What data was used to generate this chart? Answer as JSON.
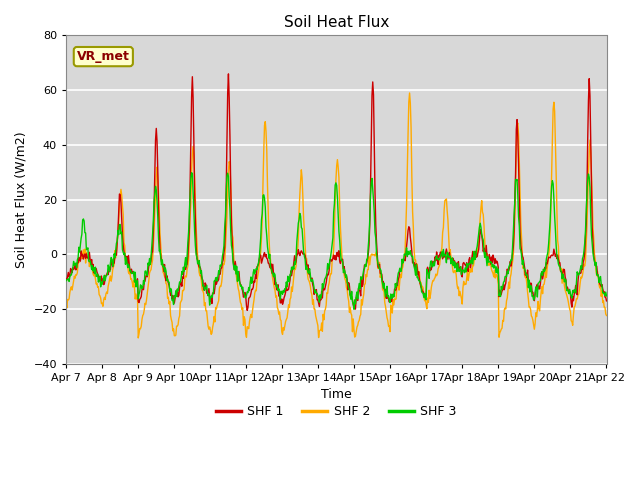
{
  "title": "Soil Heat Flux",
  "xlabel": "Time",
  "ylabel": "Soil Heat Flux (W/m2)",
  "ylim": [
    -40,
    80
  ],
  "yticks": [
    -40,
    -20,
    0,
    20,
    40,
    60,
    80
  ],
  "xtick_labels": [
    "Apr 7",
    "Apr 8",
    "Apr 9",
    "Apr 10",
    "Apr 11",
    "Apr 12",
    "Apr 13",
    "Apr 14",
    "Apr 15",
    "Apr 16",
    "Apr 17",
    "Apr 18",
    "Apr 19",
    "Apr 20",
    "Apr 21",
    "Apr 22"
  ],
  "shf1_color": "#cc0000",
  "shf2_color": "#ffaa00",
  "shf3_color": "#00cc00",
  "legend_label1": "SHF 1",
  "legend_label2": "SHF 2",
  "legend_label3": "SHF 3",
  "annotation_text": "VR_met",
  "plot_bg_color": "#d8d8d8",
  "fig_bg_color": "#ffffff",
  "grid_color": "#ffffff",
  "linewidth": 1.0,
  "title_fontsize": 11,
  "axis_fontsize": 9,
  "tick_fontsize": 8
}
